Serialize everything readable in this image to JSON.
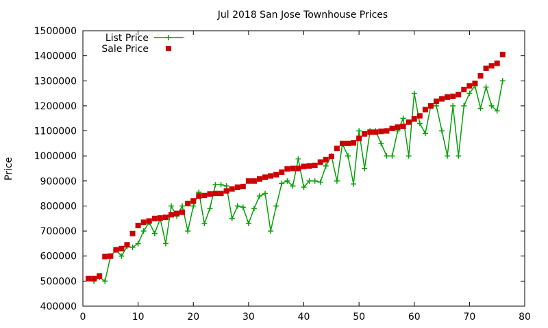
{
  "chart_data": {
    "type": "line",
    "title": "Jul 2018 San Jose Townhouse Prices",
    "xlabel": "",
    "ylabel": "Price",
    "xlim": [
      0,
      80
    ],
    "ylim": [
      400000,
      1500000
    ],
    "xticks": [
      0,
      10,
      20,
      30,
      40,
      50,
      60,
      70,
      80
    ],
    "yticks": [
      400000,
      500000,
      600000,
      700000,
      800000,
      900000,
      1000000,
      1100000,
      1200000,
      1300000,
      1400000,
      1500000
    ],
    "grid": false,
    "legend_position": "top-left",
    "x": [
      1,
      2,
      3,
      4,
      5,
      6,
      7,
      8,
      9,
      10,
      11,
      12,
      13,
      14,
      15,
      16,
      17,
      18,
      19,
      20,
      21,
      22,
      23,
      24,
      25,
      26,
      27,
      28,
      29,
      30,
      31,
      32,
      33,
      34,
      35,
      36,
      37,
      38,
      39,
      40,
      41,
      42,
      43,
      44,
      45,
      46,
      47,
      48,
      49,
      50,
      51,
      52,
      53,
      54,
      55,
      56,
      57,
      58,
      59,
      60,
      61,
      62,
      63,
      64,
      65,
      66,
      67,
      68,
      69,
      70,
      71,
      72,
      73,
      74,
      75,
      76
    ],
    "series": [
      {
        "name": "List Price",
        "style": "line-plus",
        "color": "#00a000",
        "values": [
          510000,
          500000,
          515000,
          500000,
          598000,
          625000,
          600000,
          638000,
          635000,
          650000,
          700000,
          735000,
          690000,
          750000,
          650000,
          800000,
          760000,
          800000,
          700000,
          800000,
          855000,
          730000,
          790000,
          885000,
          885000,
          880000,
          750000,
          800000,
          795000,
          730000,
          790000,
          840000,
          850000,
          700000,
          800000,
          890000,
          900000,
          880000,
          988000,
          875000,
          900000,
          900000,
          895000,
          960000,
          1000000,
          900000,
          1048000,
          1000000,
          888000,
          1100000,
          950000,
          1100000,
          1100000,
          1050000,
          1000000,
          1000000,
          1100000,
          1150000,
          1000000,
          1250000,
          1130000,
          1090000,
          1200000,
          1200000,
          1100000,
          1000000,
          1200000,
          1000000,
          1200000,
          1250000,
          1280000,
          1190000,
          1275000,
          1200000,
          1180000,
          1300000
        ]
      },
      {
        "name": "Sale Price",
        "style": "points-square",
        "color": "#cc0000",
        "values": [
          510000,
          510000,
          520000,
          598000,
          600000,
          625000,
          630000,
          645000,
          690000,
          722000,
          735000,
          740000,
          750000,
          752000,
          755000,
          765000,
          770000,
          775000,
          810000,
          820000,
          840000,
          842000,
          848000,
          850000,
          850000,
          860000,
          868000,
          875000,
          878000,
          900000,
          900000,
          908000,
          915000,
          920000,
          925000,
          935000,
          948000,
          950000,
          950000,
          958000,
          960000,
          962000,
          975000,
          985000,
          998000,
          1030000,
          1050000,
          1050000,
          1052000,
          1070000,
          1088000,
          1095000,
          1095000,
          1098000,
          1100000,
          1110000,
          1115000,
          1118000,
          1135000,
          1148000,
          1160000,
          1185000,
          1200000,
          1218000,
          1228000,
          1235000,
          1238000,
          1245000,
          1265000,
          1280000,
          1290000,
          1320000,
          1350000,
          1360000,
          1370000,
          1405000
        ]
      }
    ]
  }
}
